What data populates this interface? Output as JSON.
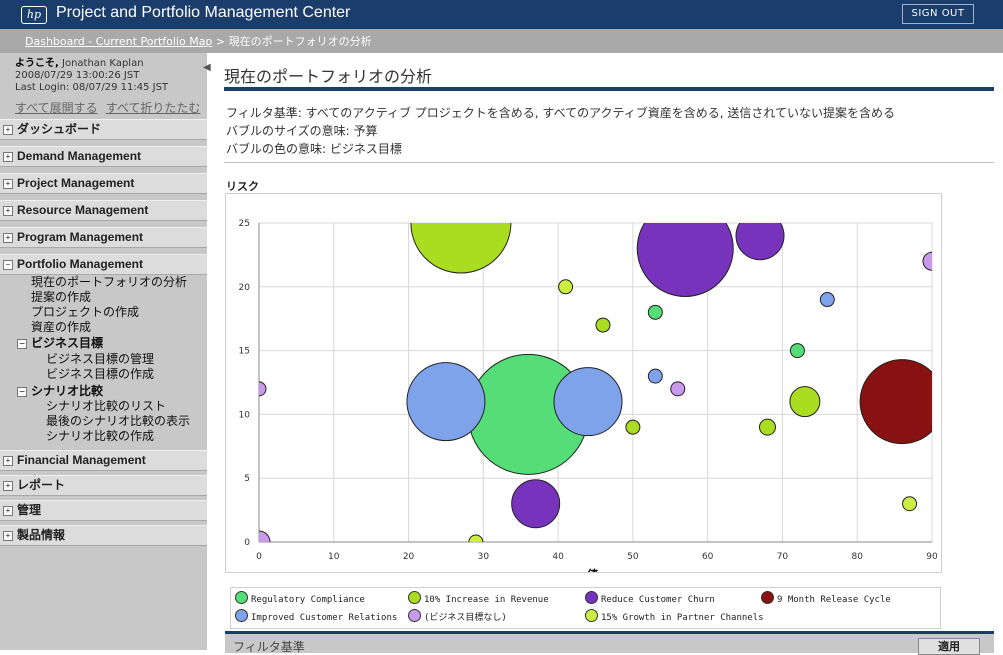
{
  "header": {
    "logo_text": "hp",
    "app_title": "Project and Portfolio Management Center",
    "signout_label": "SIGN OUT"
  },
  "breadcrumb": {
    "link": "Dashboard - Current Portfolio Map",
    "separator": " > ",
    "current": "現在のポートフォリオの分析"
  },
  "sidebar": {
    "welcome_prefix": "ようこそ,",
    "user_name": "Jonathan Kaplan",
    "datetime": "2008/07/29 13:00:26 JST",
    "last_login": "Last Login: 08/07/29 11:45 JST",
    "expand_all": "すべて展開する",
    "collapse_all": "すべて折りたたむ",
    "sections": [
      {
        "label": "ダッシュボード",
        "expanded": false
      },
      {
        "label": "Demand Management",
        "expanded": false
      },
      {
        "label": "Project Management",
        "expanded": false
      },
      {
        "label": "Resource Management",
        "expanded": false
      },
      {
        "label": "Program Management",
        "expanded": false
      },
      {
        "label": "Portfolio Management",
        "expanded": true
      },
      {
        "label": "Financial Management",
        "expanded": false
      },
      {
        "label": "レポート",
        "expanded": false
      },
      {
        "label": "管理",
        "expanded": false
      },
      {
        "label": "製品情報",
        "expanded": false
      }
    ],
    "portfolio_items": [
      "現在のポートフォリオの分析",
      "提案の作成",
      "プロジェクトの作成",
      "資産の作成"
    ],
    "biz_goals": {
      "label": "ビジネス目標",
      "items": [
        "ビジネス目標の管理",
        "ビジネス目標の作成"
      ]
    },
    "scenarios": {
      "label": "シナリオ比較",
      "items": [
        "シナリオ比較のリスト",
        "最後のシナリオ比較の表示",
        "シナリオ比較の作成"
      ]
    }
  },
  "main": {
    "title": "現在のポートフォリオの分析",
    "filter_lines": [
      "フィルタ基準: すべてのアクティブ プロジェクトを含める, すべてのアクティブ資産を含める, 送信されていない提案を含める",
      "バブルのサイズの意味: 予算",
      "バブルの色の意味: ビジネス目標"
    ],
    "bottom_label": "フィルタ基準",
    "apply_label": "適用"
  },
  "chart_data": {
    "type": "scatter",
    "title": "リスク",
    "xlabel": "値",
    "ylabel": "リスク",
    "xlim": [
      0,
      90
    ],
    "ylim": [
      0,
      25
    ],
    "x_ticks": [
      0,
      10,
      20,
      30,
      40,
      50,
      60,
      70,
      80,
      90
    ],
    "y_ticks": [
      0,
      5,
      10,
      15,
      20,
      25
    ],
    "grid": true,
    "legend_position": "bottom",
    "series": [
      {
        "name": "Regulatory Compliance",
        "color": "#55dd77",
        "points": [
          {
            "x": 36,
            "y": 10,
            "size": 60
          },
          {
            "x": 53,
            "y": 18,
            "size": 7
          },
          {
            "x": 72,
            "y": 15,
            "size": 7
          }
        ]
      },
      {
        "name": "10% Increase in Revenue",
        "color": "#aadd22",
        "points": [
          {
            "x": 27,
            "y": 25,
            "size": 50
          },
          {
            "x": 73,
            "y": 11,
            "size": 15
          },
          {
            "x": 46,
            "y": 17,
            "size": 7
          },
          {
            "x": 50,
            "y": 9,
            "size": 7
          },
          {
            "x": 68,
            "y": 9,
            "size": 8
          }
        ]
      },
      {
        "name": "Reduce Customer Churn",
        "color": "#7733bb",
        "points": [
          {
            "x": 57,
            "y": 23,
            "size": 48
          },
          {
            "x": 67,
            "y": 24,
            "size": 24
          },
          {
            "x": 37,
            "y": 3,
            "size": 24
          }
        ]
      },
      {
        "name": "9 Month Release Cycle",
        "color": "#881111",
        "points": [
          {
            "x": 86,
            "y": 11,
            "size": 42
          }
        ]
      },
      {
        "name": "Improved Customer Relations",
        "color": "#7fa3ea",
        "points": [
          {
            "x": 25,
            "y": 11,
            "size": 39
          },
          {
            "x": 44,
            "y": 11,
            "size": 34
          },
          {
            "x": 76,
            "y": 19,
            "size": 7
          },
          {
            "x": 53,
            "y": 13,
            "size": 7
          }
        ]
      },
      {
        "name": "(ビジネス目標なし)",
        "color": "#c999ec",
        "points": [
          {
            "x": 90,
            "y": 22,
            "size": 9
          },
          {
            "x": 56,
            "y": 12,
            "size": 7
          },
          {
            "x": 0,
            "y": 12,
            "size": 7
          },
          {
            "x": 0,
            "y": 0,
            "size": 11
          }
        ]
      },
      {
        "name": "15% Growth in Partner Channels",
        "color": "#ccee44",
        "points": [
          {
            "x": 41,
            "y": 20,
            "size": 7
          },
          {
            "x": 87,
            "y": 3,
            "size": 7
          },
          {
            "x": 29,
            "y": 0,
            "size": 7
          }
        ]
      }
    ]
  }
}
